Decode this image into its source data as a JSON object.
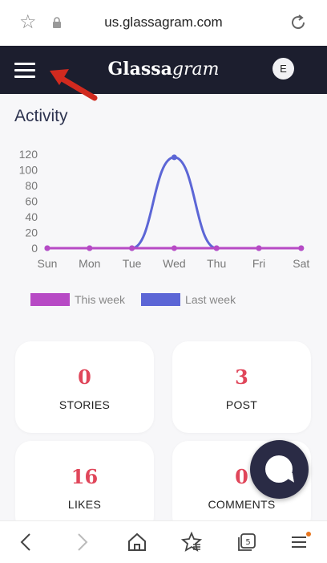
{
  "browser": {
    "url": "us.glassagram.com"
  },
  "header": {
    "brand_bold": "Glassa",
    "brand_italic": "gram",
    "avatar_initial": "E"
  },
  "activity": {
    "title": "Activity"
  },
  "chart_data": {
    "type": "line",
    "categories": [
      "Sun",
      "Mon",
      "Tue",
      "Wed",
      "Thu",
      "Fri",
      "Sat"
    ],
    "yticks": [
      0,
      20,
      40,
      60,
      80,
      100,
      120
    ],
    "ylim": [
      0,
      120
    ],
    "grid": false,
    "legend_position": "bottom",
    "series": [
      {
        "name": "This week",
        "color": "#b74ac5",
        "values": [
          0,
          0,
          0,
          0,
          0,
          0,
          0
        ]
      },
      {
        "name": "Last week",
        "color": "#5c66d6",
        "values": [
          0,
          0,
          0,
          116,
          0,
          0,
          0
        ]
      }
    ]
  },
  "stats": [
    {
      "value": "0",
      "label": "STORIES"
    },
    {
      "value": "3",
      "label": "POST"
    },
    {
      "value": "16",
      "label": "LIKES"
    },
    {
      "value": "0",
      "label": "COMMENTS"
    }
  ],
  "bottom_nav": {
    "tabs_count": "5"
  }
}
